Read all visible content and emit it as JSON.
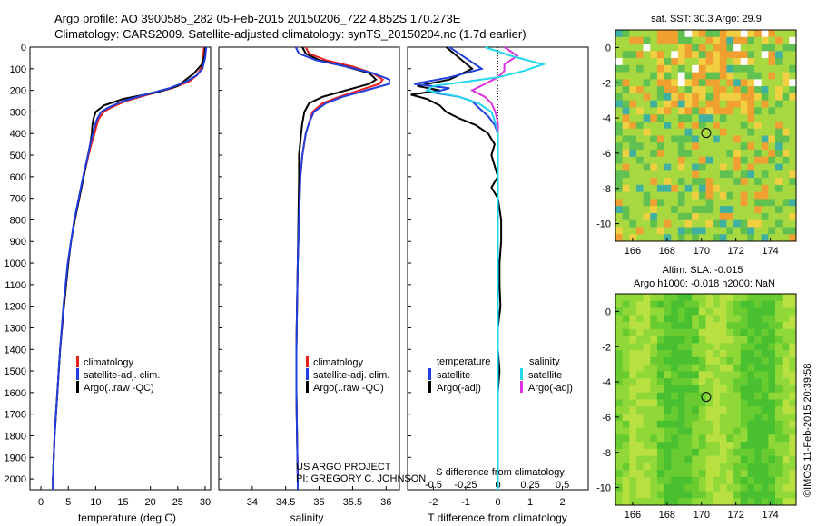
{
  "header": {
    "line1": "Argo profile: AO 3900585_282 05-Feb-2015 20150206_722 4.852S 170.273E",
    "line2": "Climatology: CARS2009. Satellite-adjusted climatology: synTS_20150204.nc (1.7d earlier)"
  },
  "colors": {
    "clim": "#e8201c",
    "sat": "#1f3fe0",
    "argo": "#000000",
    "sal_sat": "#22d8f0",
    "sal_argo": "#e030e0"
  },
  "depth_ticks": [
    0,
    100,
    200,
    300,
    400,
    500,
    600,
    700,
    800,
    900,
    1000,
    1100,
    1200,
    1300,
    1400,
    1500,
    1600,
    1700,
    1800,
    1900,
    2000
  ],
  "credit": {
    "line1": "US ARGO PROJECT",
    "line2": "PI: GREGORY C. JOHNSON"
  },
  "stamp": "©IMOS 11-Feb-2015 20:39:58",
  "chart_data": [
    {
      "type": "line",
      "name": "temperature",
      "xlabel": "temperature (deg C)",
      "xlim": [
        -2,
        31
      ],
      "ylim": [
        0,
        2050
      ],
      "xticks": [
        "0",
        "5",
        "10",
        "15",
        "20",
        "25",
        "30"
      ],
      "legend": [
        "climatology",
        "satellite-adj. clim.",
        "Argo(..raw -QC)"
      ],
      "series": [
        {
          "name": "climatology",
          "depth": [
            0,
            50,
            100,
            130,
            160,
            190,
            220,
            250,
            280,
            300,
            330,
            360,
            400,
            450,
            500,
            600,
            700,
            800,
            900,
            1000,
            1200,
            1400,
            1600,
            1800,
            2000,
            2050
          ],
          "values": [
            29.8,
            29.6,
            29.2,
            28.5,
            27,
            24,
            19.5,
            15.5,
            12.8,
            11.5,
            10.6,
            10.2,
            9.8,
            9.2,
            8.7,
            7.8,
            7,
            6.2,
            5.5,
            5,
            4.2,
            3.5,
            3,
            2.5,
            2.2,
            2.2
          ]
        },
        {
          "name": "satellite-adj. clim.",
          "depth": [
            0,
            50,
            100,
            130,
            160,
            190,
            220,
            250,
            280,
            300,
            330,
            360,
            400,
            450,
            500,
            600,
            700,
            800,
            900,
            1000,
            1200,
            1400,
            1600,
            1800,
            2000,
            2050
          ],
          "values": [
            30.2,
            30,
            29.5,
            28.5,
            26.5,
            23.5,
            19,
            15,
            12.3,
            11,
            10.3,
            9.9,
            9.5,
            9,
            8.6,
            7.7,
            6.9,
            6.1,
            5.5,
            4.9,
            4.1,
            3.5,
            3,
            2.5,
            2.2,
            2.2
          ]
        },
        {
          "name": "Argo(..raw -QC)",
          "depth": [
            0,
            40,
            80,
            120,
            150,
            180,
            210,
            240,
            270,
            300,
            330,
            360,
            400,
            450,
            500,
            600,
            700,
            800,
            900,
            1000,
            1200,
            1400,
            1600,
            1800,
            2000,
            2050
          ],
          "values": [
            30,
            29.9,
            29.4,
            28,
            26.5,
            25,
            21,
            15,
            11.5,
            10,
            9.6,
            9.4,
            9.3,
            9,
            8.6,
            7.8,
            7,
            6.2,
            5.5,
            5,
            4.2,
            3.5,
            3,
            2.5,
            2.2,
            2.2
          ]
        }
      ]
    },
    {
      "type": "line",
      "name": "salinity",
      "xlabel": "salinity",
      "xlim": [
        33.5,
        36.2
      ],
      "ylim": [
        0,
        2050
      ],
      "xticks": [
        "34",
        "34.5",
        "35",
        "35.5",
        "36"
      ],
      "legend": [
        "climatology",
        "satellite-adj. clim.",
        "Argo(..raw -QC)"
      ],
      "series": [
        {
          "name": "climatology",
          "depth": [
            0,
            30,
            60,
            90,
            120,
            150,
            170,
            200,
            230,
            260,
            300,
            350,
            400,
            500,
            600,
            800,
            1000,
            1200,
            1400,
            1600,
            1800,
            2000,
            2050
          ],
          "values": [
            34.8,
            34.85,
            35.1,
            35.5,
            35.8,
            35.95,
            35.9,
            35.6,
            35.3,
            35.05,
            34.9,
            34.85,
            34.8,
            34.75,
            34.72,
            34.7,
            34.68,
            34.67,
            34.66,
            34.66,
            34.67,
            34.68,
            34.68
          ]
        },
        {
          "name": "satellite-adj. clim.",
          "depth": [
            0,
            30,
            60,
            90,
            120,
            150,
            170,
            200,
            230,
            260,
            300,
            350,
            400,
            500,
            600,
            800,
            1000,
            1200,
            1400,
            1600,
            1800,
            2000,
            2050
          ],
          "values": [
            34.65,
            34.7,
            34.95,
            35.4,
            35.8,
            36.05,
            36.05,
            35.7,
            35.35,
            35.1,
            34.92,
            34.85,
            34.8,
            34.75,
            34.72,
            34.7,
            34.68,
            34.67,
            34.66,
            34.66,
            34.67,
            34.68,
            34.68
          ]
        },
        {
          "name": "Argo(..raw -QC)",
          "depth": [
            0,
            30,
            60,
            90,
            120,
            150,
            170,
            200,
            230,
            260,
            300,
            350,
            400,
            500,
            600,
            800,
            1000,
            1200,
            1400,
            1600,
            1800,
            2000,
            2050
          ],
          "values": [
            34.75,
            34.8,
            35,
            35.4,
            35.75,
            35.85,
            35.75,
            35.4,
            35.05,
            34.85,
            34.78,
            34.75,
            34.73,
            34.7,
            34.7,
            34.69,
            34.68,
            34.67,
            34.66,
            34.66,
            34.67,
            34.68,
            34.68
          ]
        }
      ]
    },
    {
      "type": "line",
      "name": "difference",
      "xlabel": "T difference from climatology",
      "xlabel_top": "S difference from climatology",
      "xlim": [
        -2.8,
        2.8
      ],
      "ylim": [
        0,
        2050
      ],
      "xticks": [
        "-2",
        "-1",
        "0",
        "1",
        "2"
      ],
      "s_xticks": [
        "-0.5",
        "-0.25",
        "0",
        "0.25",
        "0.5"
      ],
      "legend": {
        "temperature": "temperature",
        "salinity": "salinity",
        "t_sat": "satellite",
        "t_argo": "Argo(-adj)",
        "s_sat": "satellite",
        "s_argo": "Argo(-adj)"
      },
      "series": [
        {
          "name": "T satellite",
          "depth": [
            0,
            50,
            100,
            140,
            170,
            190,
            210,
            230,
            250,
            280,
            320,
            360,
            400,
            500,
            700,
            1000,
            1400,
            1800,
            2050
          ],
          "values": [
            -1.5,
            -1,
            -0.5,
            -1.5,
            -2.6,
            -1.5,
            -2,
            -1.2,
            -0.8,
            -0.6,
            -0.3,
            -0.1,
            0,
            0,
            0,
            0,
            0,
            0,
            0
          ]
        },
        {
          "name": "T Argo(-adj)",
          "depth": [
            0,
            50,
            100,
            150,
            180,
            200,
            220,
            240,
            270,
            300,
            330,
            360,
            400,
            450,
            500,
            550,
            600,
            650,
            700,
            800,
            900,
            1000,
            1100,
            1200,
            1300,
            1400,
            1500,
            1600,
            1800,
            2050
          ],
          "values": [
            -1.6,
            -1.2,
            -0.8,
            -1.5,
            -2.5,
            -1.8,
            -2.7,
            -2.2,
            -1.8,
            -1.6,
            -1.2,
            -0.7,
            -0.3,
            -0.1,
            -0.2,
            -0.1,
            0,
            -0.2,
            0,
            0.1,
            0.1,
            0.05,
            0.05,
            0.08,
            0,
            0,
            0.05,
            0,
            0,
            0
          ]
        },
        {
          "name": "S satellite",
          "depth": [
            0,
            40,
            80,
            110,
            140,
            160,
            180,
            200,
            230,
            260,
            300,
            350,
            400,
            600,
            1000,
            1500,
            2050
          ],
          "values": [
            -0.1,
            0.1,
            0.35,
            0.2,
            0,
            -0.25,
            -0.5,
            -0.55,
            -0.3,
            -0.15,
            -0.05,
            -0.02,
            0,
            0,
            0,
            0,
            0
          ]
        },
        {
          "name": "S Argo(-adj)",
          "depth": [
            0,
            40,
            80,
            110,
            140,
            170,
            200,
            230,
            260,
            300,
            350,
            400,
            600,
            1000,
            1500,
            2050
          ],
          "values": [
            0.05,
            0.15,
            0.05,
            0.05,
            0.0,
            -0.1,
            -0.2,
            -0.1,
            -0.05,
            -0.02,
            0,
            0,
            0,
            0,
            0,
            0
          ]
        }
      ]
    },
    {
      "type": "heatmap",
      "name": "sst-map",
      "title": "sat. SST: 30.3  Argo: 29.9",
      "xticks": [
        "166",
        "168",
        "170",
        "172",
        "174"
      ],
      "yticks": [
        "0",
        "-2",
        "-4",
        "-6",
        "-8",
        "-10"
      ],
      "xlim": [
        165,
        175.5
      ],
      "ylim": [
        -11,
        1
      ],
      "marker": {
        "lon": 170.273,
        "lat": -4.852
      }
    },
    {
      "type": "heatmap",
      "name": "sla-map",
      "title_line1": "Altim. SLA: -0.015",
      "title_line2": "Argo h1000: -0.018 h2000: NaN",
      "xticks": [
        "166",
        "168",
        "170",
        "172",
        "174"
      ],
      "yticks": [
        "0",
        "-2",
        "-4",
        "-6",
        "-8",
        "-10"
      ],
      "xlim": [
        165,
        175.5
      ],
      "ylim": [
        -11,
        1
      ],
      "marker": {
        "lon": 170.273,
        "lat": -4.852
      }
    }
  ]
}
